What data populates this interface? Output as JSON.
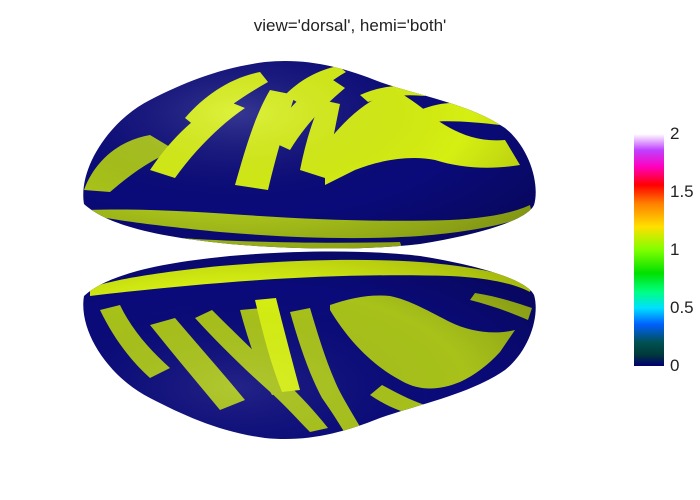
{
  "title": "view='dorsal', hemi='both'",
  "colors": {
    "sulcus": "#0a0a7a",
    "gyrus": "#d6ef12",
    "gyrus_shaded": "#a8c21a",
    "background": "#ffffff"
  },
  "colorbar": {
    "min": 0,
    "max": 2,
    "ticks": [
      {
        "value": 2,
        "label": "2"
      },
      {
        "value": 1.5,
        "label": "1.5"
      },
      {
        "value": 1,
        "label": "1"
      },
      {
        "value": 0.5,
        "label": "0.5"
      },
      {
        "value": 0,
        "label": "0"
      }
    ],
    "stops": [
      {
        "value": 0,
        "color": "#000070"
      },
      {
        "value": 0.05,
        "color": "#003a3a"
      },
      {
        "value": 0.1,
        "color": "#005050"
      },
      {
        "value": 0.18,
        "color": "#0060ff"
      },
      {
        "value": 0.25,
        "color": "#00e0ff"
      },
      {
        "value": 0.32,
        "color": "#00ff80"
      },
      {
        "value": 0.4,
        "color": "#00e000"
      },
      {
        "value": 0.5,
        "color": "#80ff00"
      },
      {
        "value": 0.6,
        "color": "#ffe000"
      },
      {
        "value": 0.7,
        "color": "#ff8000"
      },
      {
        "value": 0.78,
        "color": "#ff0000"
      },
      {
        "value": 0.86,
        "color": "#ff00c0"
      },
      {
        "value": 0.93,
        "color": "#c040ff"
      },
      {
        "value": 1,
        "color": "#ffffff"
      }
    ]
  }
}
